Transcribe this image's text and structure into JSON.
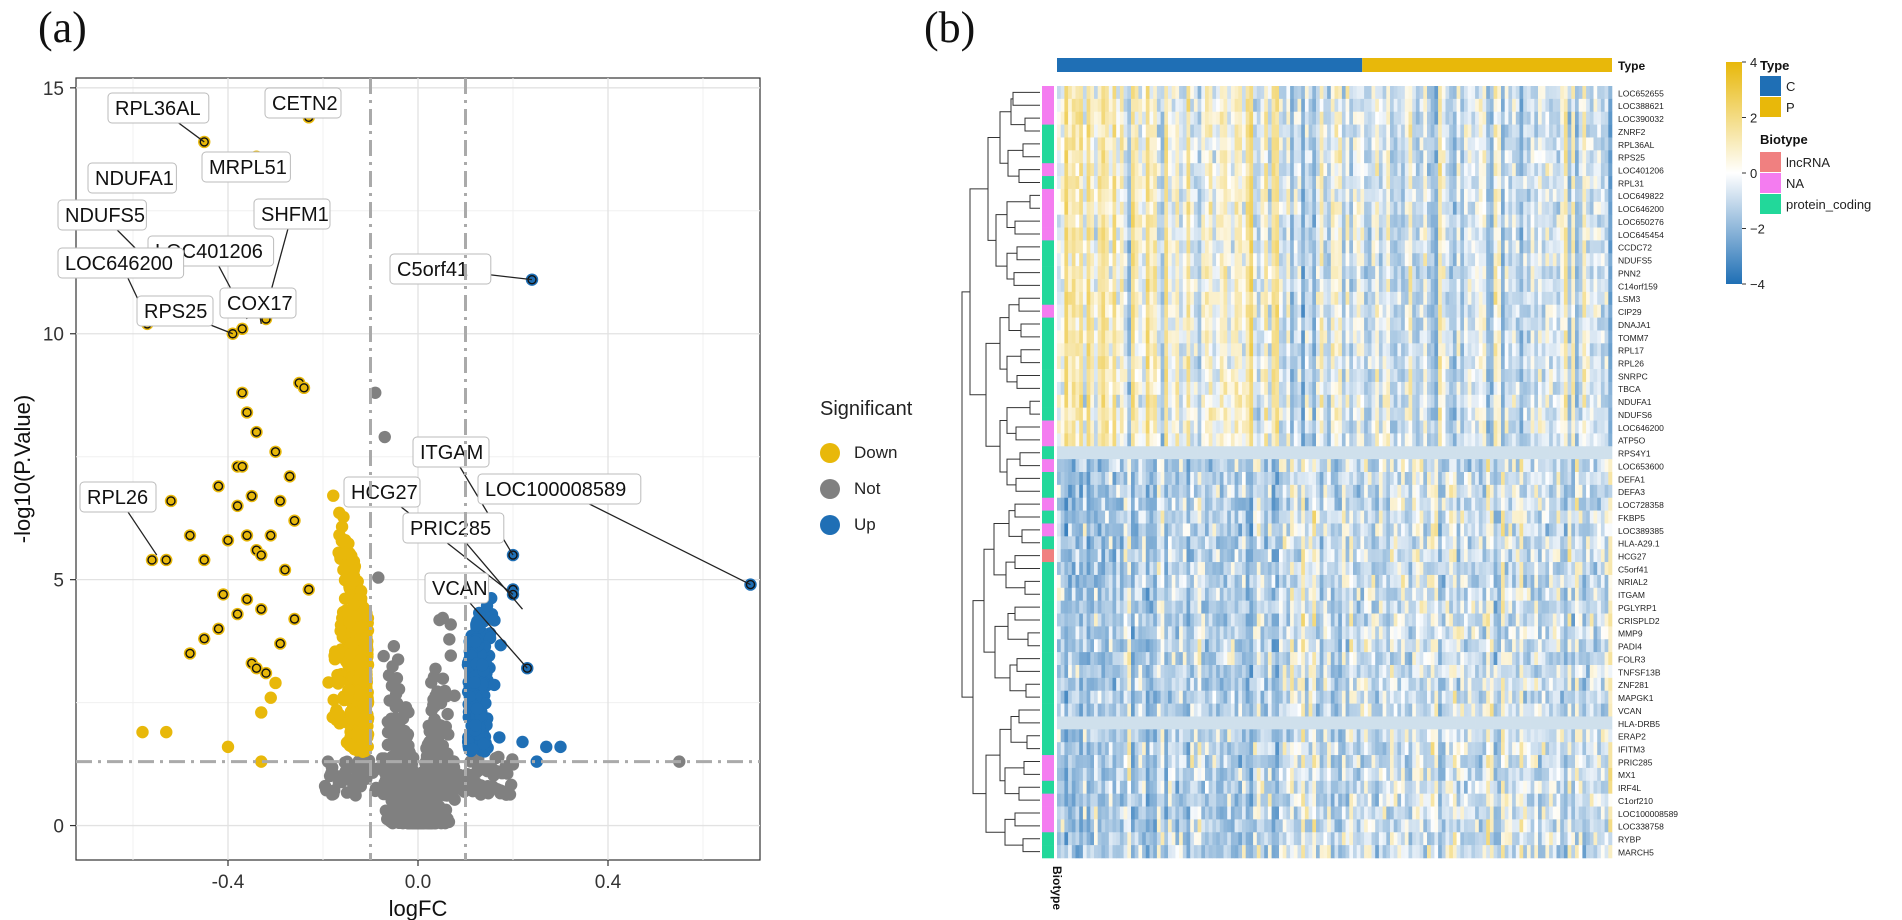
{
  "panels": {
    "a": "(a)",
    "b": "(b)"
  },
  "colors": {
    "down": "#E8B80A",
    "not": "#808080",
    "up": "#1F6FB5",
    "typeC": "#1F6FB5",
    "typeP": "#E8B80A",
    "lncRNA": "#F08080",
    "NA": "#F47CF0",
    "protein_coding": "#22D89A"
  },
  "chart_data": [
    {
      "type": "scatter",
      "title": "",
      "xlabel": "logFC",
      "ylabel": "-log10(P.Value)",
      "xlim": [
        -0.72,
        0.72
      ],
      "ylim": [
        -0.7,
        15.2
      ],
      "xticks": [
        -0.4,
        0.0,
        0.4
      ],
      "xtick_labels": [
        "-0.4",
        "0.0",
        "0.4"
      ],
      "yticks": [
        0,
        5,
        10,
        15
      ],
      "ytick_labels": [
        "0",
        "5",
        "10",
        "15"
      ],
      "thresholds": {
        "logFC": [
          -0.1,
          0.1
        ],
        "neglog10p": 1.3
      },
      "legend": {
        "title": "Significant",
        "entries": [
          "Down",
          "Not",
          "Up"
        ],
        "position": "right"
      },
      "labeled_points": [
        {
          "label": "RPL36AL",
          "x": -0.45,
          "y": 13.9,
          "group": "Down"
        },
        {
          "label": "CETN2",
          "x": -0.23,
          "y": 14.4,
          "group": "Down"
        },
        {
          "label": "MRPL51",
          "x": -0.34,
          "y": 13.6,
          "group": "Down"
        },
        {
          "label": "NDUFA1",
          "x": -0.67,
          "y": 13.2,
          "group": "Down"
        },
        {
          "label": "NDUFS5",
          "x": -0.56,
          "y": 11.4,
          "group": "Down"
        },
        {
          "label": "SHFM1",
          "x": -0.32,
          "y": 10.5,
          "group": "Down"
        },
        {
          "label": "LOC401206",
          "x": -0.36,
          "y": 10.3,
          "group": "Down"
        },
        {
          "label": "LOC646200",
          "x": -0.57,
          "y": 10.3,
          "group": "Down"
        },
        {
          "label": "RPS25",
          "x": -0.39,
          "y": 10.0,
          "group": "Down"
        },
        {
          "label": "COX17",
          "x": -0.33,
          "y": 10.2,
          "group": "Down"
        },
        {
          "label": "C5orf41",
          "x": 0.24,
          "y": 11.1,
          "group": "Up"
        },
        {
          "label": "ITGAM",
          "x": 0.2,
          "y": 5.5,
          "group": "Up"
        },
        {
          "label": "LOC100008589",
          "x": 0.7,
          "y": 4.9,
          "group": "Up"
        },
        {
          "label": "HCG27",
          "x": 0.2,
          "y": 4.7,
          "group": "Up"
        },
        {
          "label": "PRIC285",
          "x": 0.22,
          "y": 4.4,
          "group": "Up"
        },
        {
          "label": "VCAN",
          "x": 0.23,
          "y": 3.2,
          "group": "Up"
        },
        {
          "label": "RPL26",
          "x": -0.55,
          "y": 5.5,
          "group": "Down"
        }
      ]
    },
    {
      "type": "heatmap",
      "title": "",
      "column_annotation": {
        "name": "Type",
        "levels": [
          "C",
          "P"
        ],
        "split_fraction": 0.55
      },
      "row_annotation": {
        "name": "Biotype",
        "levels": [
          "lncRNA",
          "NA",
          "protein_coding"
        ]
      },
      "colorbar": {
        "min": -4,
        "max": 4,
        "ticks": [
          4,
          2,
          0,
          -2,
          -4
        ],
        "tick_labels": [
          "4",
          "2",
          "0",
          "−2",
          "−4"
        ]
      },
      "genes": [
        "LOC652655",
        "LOC388621",
        "LOC390032",
        "ZNRF2",
        "RPL36AL",
        "RPS25",
        "LOC401206",
        "RPL31",
        "LOC649822",
        "LOC646200",
        "LOC650276",
        "LOC645454",
        "CCDC72",
        "NDUFS5",
        "PNN2",
        "C14orf159",
        "LSM3",
        "CIP29",
        "DNAJA1",
        "TOMM7",
        "RPL17",
        "RPL26",
        "SNRPC",
        "TBCA",
        "NDUFA1",
        "NDUFS6",
        "LOC646200",
        "ATP5O",
        "RPS4Y1",
        "LOC653600",
        "DEFA1",
        "DEFA3",
        "LOC728358",
        "FKBP5",
        "LOC389385",
        "HLA-A29.1",
        "HCG27",
        "C5orf41",
        "NRIAL2",
        "ITGAM",
        "PGLYRP1",
        "CRISPLD2",
        "MMP9",
        "PADI4",
        "FOLR3",
        "TNFSF13B",
        "ZNF281",
        "MAPGK1",
        "VCAN",
        "HLA-DRB5",
        "ERAP2",
        "IFITM3",
        "PRIC285",
        "MX1",
        "IRF4L",
        "C1orf210",
        "LOC100008589",
        "LOC338758",
        "RYBP",
        "MARCH5"
      ],
      "biotypes": [
        "NA",
        "NA",
        "NA",
        "PC",
        "PC",
        "PC",
        "NA",
        "PC",
        "NA",
        "NA",
        "NA",
        "NA",
        "PC",
        "PC",
        "PC",
        "PC",
        "PC",
        "NA",
        "PC",
        "PC",
        "PC",
        "PC",
        "PC",
        "PC",
        "PC",
        "PC",
        "NA",
        "NA",
        "PC",
        "NA",
        "PC",
        "PC",
        "NA",
        "PC",
        "NA",
        "PC",
        "LNC",
        "PC",
        "PC",
        "PC",
        "PC",
        "PC",
        "PC",
        "PC",
        "PC",
        "PC",
        "PC",
        "PC",
        "PC",
        "PC",
        "PC",
        "PC",
        "NA",
        "NA",
        "PC",
        "NA",
        "NA",
        "NA",
        "PC",
        "PC"
      ],
      "y_annotation_label": "Biotype"
    }
  ]
}
